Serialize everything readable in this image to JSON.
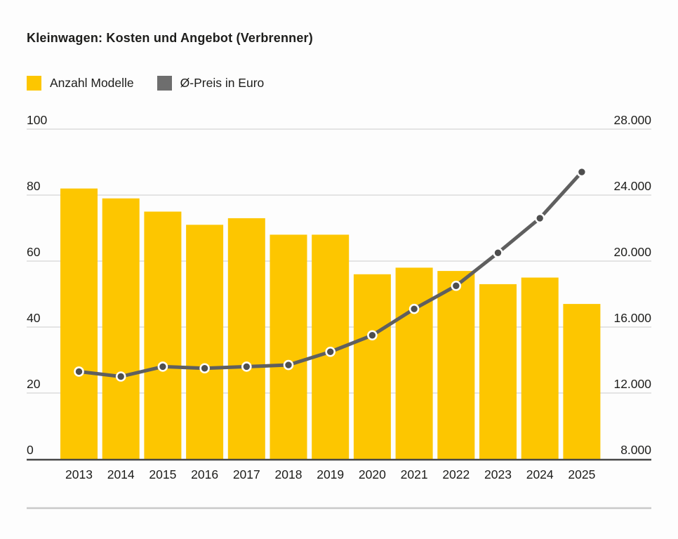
{
  "title": "Kleinwagen: Kosten und Angebot (Verbrenner)",
  "legend": [
    {
      "label": "Anzahl Modelle",
      "swatch": "bar-swatch",
      "color": "#FDC600"
    },
    {
      "label": "Ø-Preis in Euro",
      "swatch": "line-swatch",
      "color": "#6E6E6E"
    }
  ],
  "colors": {
    "bar": "#FDC600",
    "line": "#5F5F5F",
    "dot_fill": "#4E4E4E",
    "dot_ring": "#FFFFFF",
    "gridline": "#DCDCDC",
    "axis_line": "#474747",
    "text": "#1d1d1b",
    "divider": "#C9C9C9",
    "background": "#FDFDFD"
  },
  "chart_data": {
    "type": "bar",
    "subtype": "bar+line combo, dual axis",
    "title": "Kleinwagen: Kosten und Angebot (Verbrenner)",
    "categories": [
      "2013",
      "2014",
      "2015",
      "2016",
      "2017",
      "2018",
      "2019",
      "2020",
      "2021",
      "2022",
      "2023",
      "2024",
      "2025"
    ],
    "series": [
      {
        "name": "Anzahl Modelle",
        "type": "bar",
        "axis": "left",
        "values": [
          82,
          79,
          75,
          71,
          73,
          68,
          68,
          56,
          58,
          57,
          53,
          55,
          47
        ]
      },
      {
        "name": "Ø-Preis in Euro",
        "type": "line",
        "axis": "right",
        "values": [
          13300,
          13000,
          13600,
          13500,
          13600,
          13700,
          14500,
          15500,
          17100,
          18500,
          20500,
          22600,
          25400
        ]
      }
    ],
    "left_axis": {
      "tick_labels": [
        "0",
        "20",
        "40",
        "60",
        "80",
        "100"
      ],
      "tick_values": [
        0,
        20,
        40,
        60,
        80,
        100
      ],
      "range": [
        0,
        100
      ]
    },
    "right_axis": {
      "tick_labels": [
        "8.000",
        "12.000",
        "16.000",
        "20.000",
        "24.000",
        "28.000"
      ],
      "tick_values": [
        8000,
        12000,
        16000,
        20000,
        24000,
        28000
      ],
      "range": [
        8000,
        28000
      ]
    },
    "grid": true,
    "legend_position": "top-left"
  }
}
